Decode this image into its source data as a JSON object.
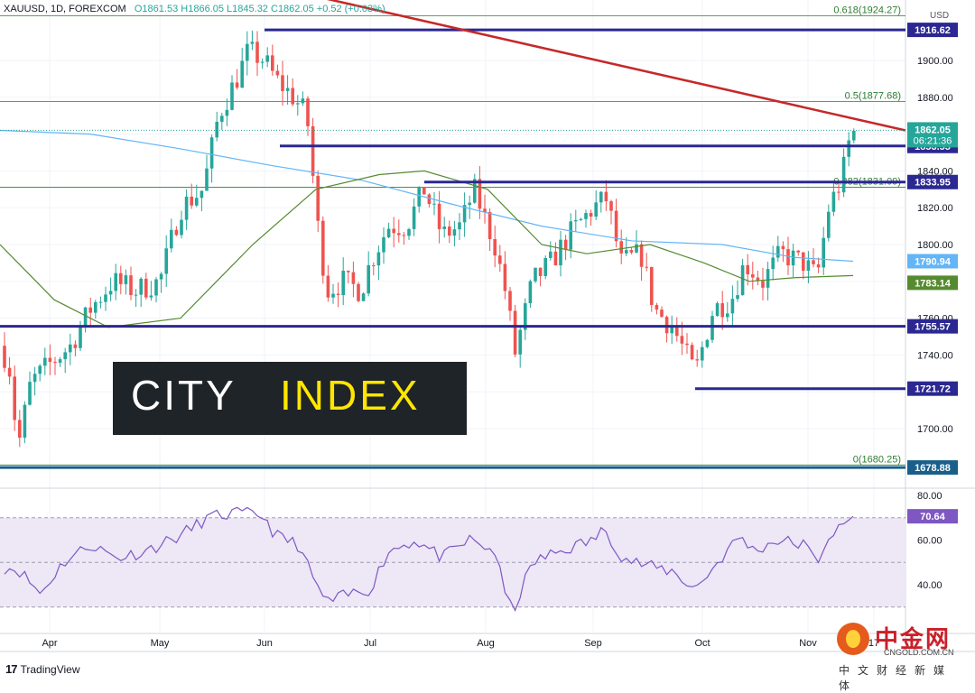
{
  "header": {
    "symbol": "XAUUSD, 1D, FOREXCOM",
    "open": "O1861.53",
    "high": "H1866.05",
    "low": "L1845.32",
    "close": "C1862.05",
    "change": "+0.52 (+0.03%)"
  },
  "currency": "USD",
  "colors": {
    "up": "#26a69a",
    "down": "#ef5350",
    "level_line": "#2b2891",
    "trendline": "#c62828",
    "ma_blue": "#64b5f6",
    "ma_green": "#558b2f",
    "fib": "#2e7d32",
    "rsi": "#7e57c2",
    "rsi_band": "#ede7f6"
  },
  "chart_data": {
    "type": "candlestick",
    "title": "",
    "x_axis_labels": [
      "Apr",
      "May",
      "Jun",
      "Jul",
      "Aug",
      "Sep",
      "Oct",
      "Nov",
      "17"
    ],
    "price_axis_ticks": [
      "1900.00",
      "1880.00",
      "1860.00",
      "1840.00",
      "1820.00",
      "1800.00",
      "1780.00",
      "1760.00",
      "1740.00",
      "1720.00",
      "1700.00",
      "1680.00"
    ],
    "rsi_axis_ticks": [
      "80.00",
      "60.00",
      "40.00"
    ],
    "horizontal_levels": [
      {
        "label": "1916.62",
        "value": 1916.62
      },
      {
        "label": "1853.55",
        "value": 1853.55
      },
      {
        "label": "1833.95",
        "value": 1833.95
      },
      {
        "label": "1755.57",
        "value": 1755.57
      },
      {
        "label": "1721.72",
        "value": 1721.72
      },
      {
        "label": "1678.88",
        "value": 1678.88
      }
    ],
    "fibonacci": [
      {
        "label": "0.618(1924.27)",
        "value": 1924.27
      },
      {
        "label": "0.5(1877.68)",
        "value": 1877.68
      },
      {
        "label": "0.382(1831.09)",
        "value": 1831.09
      },
      {
        "label": "0(1680.25)",
        "value": 1680.25
      }
    ],
    "trendline": {
      "from": [
        "Mar 26",
        1965
      ],
      "to": [
        "Nov 17",
        1862
      ]
    },
    "price_labels": {
      "last": "1862.05",
      "countdown": "06:21:36",
      "ma_blue": "1790.94",
      "ma_green": "1783.14"
    },
    "rsi": {
      "value": "70.64",
      "upper": 70,
      "mid": 50,
      "lower": 30
    },
    "ohlc_series": "daily candles 2021-03-26 to 2021-11-17 (approximate)"
  },
  "footer": {
    "brand": "TradingView"
  },
  "logos": {
    "city": "CITY",
    "index": "INDEX",
    "cngold_brand": "中金网",
    "cngold_url": "CNGOLD.COM.CN",
    "cngold_slogan": "中文财经新媒体"
  }
}
